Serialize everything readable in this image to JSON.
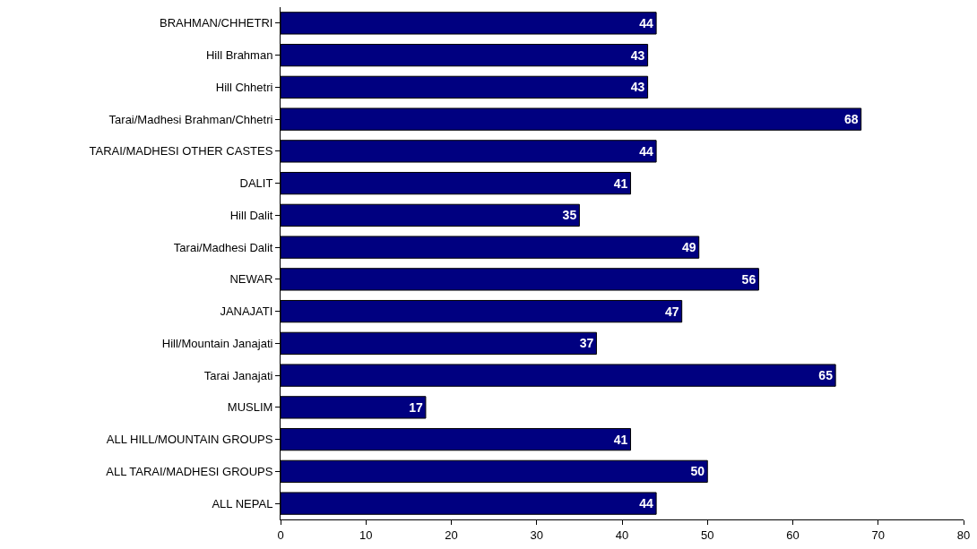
{
  "chart_data": {
    "type": "bar",
    "orientation": "horizontal",
    "categories": [
      "BRAHMAN/CHHETRI",
      "Hill Brahman",
      "Hill Chhetri",
      "Tarai/Madhesi Brahman/Chhetri",
      "TARAI/MADHESI OTHER CASTES",
      "DALIT",
      "Hill Dalit",
      "Tarai/Madhesi Dalit",
      "NEWAR",
      "JANAJATI",
      "Hill/Mountain Janajati",
      "Tarai Janajati",
      "MUSLIM",
      "ALL HILL/MOUNTAIN GROUPS",
      "ALL TARAI/MADHESI GROUPS",
      "ALL NEPAL"
    ],
    "values": [
      44,
      43,
      43,
      68,
      44,
      41,
      35,
      49,
      56,
      47,
      37,
      65,
      17,
      41,
      50,
      44
    ],
    "color": "#000080",
    "data_labels": true,
    "xlim": [
      0,
      80
    ],
    "xticks": [
      0,
      10,
      20,
      30,
      40,
      50,
      60,
      70,
      80
    ]
  }
}
